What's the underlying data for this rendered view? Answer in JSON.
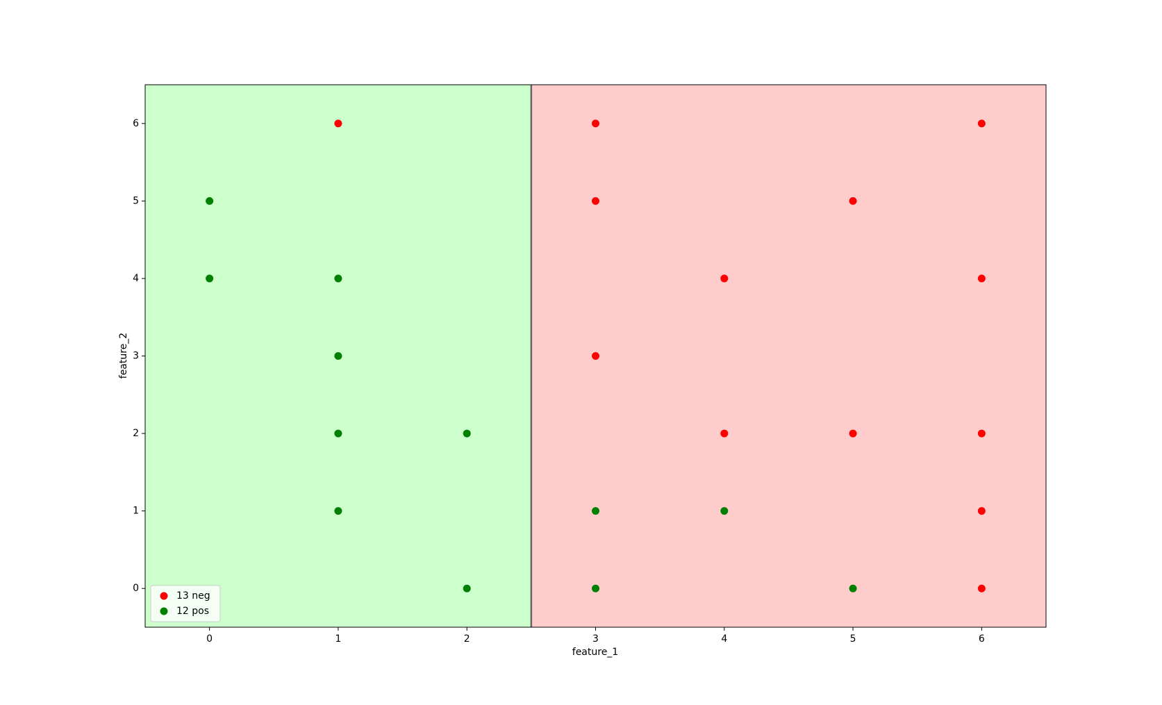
{
  "chart_data": {
    "type": "scatter",
    "xlabel": "feature_1",
    "ylabel": "feature_2",
    "xlim": [
      -0.5,
      6.5
    ],
    "ylim": [
      -0.5,
      6.5
    ],
    "xticks": [
      0,
      1,
      2,
      3,
      4,
      5,
      6
    ],
    "yticks": [
      0,
      1,
      2,
      3,
      4,
      5,
      6
    ],
    "split": {
      "x": 2.5,
      "left_color": "#ccffcc",
      "right_color": "#ffcccc",
      "line_color": "#666666"
    },
    "legend": "lower left",
    "series": [
      {
        "name": "13 neg",
        "color": "#ff0000",
        "x": [
          1,
          3,
          6,
          3,
          5,
          4,
          6,
          3,
          4,
          5,
          6,
          6,
          6
        ],
        "y": [
          6,
          6,
          6,
          5,
          5,
          4,
          4,
          3,
          2,
          2,
          2,
          1,
          0
        ]
      },
      {
        "name": "12 pos",
        "color": "#008000",
        "x": [
          0,
          0,
          1,
          1,
          1,
          2,
          1,
          3,
          4,
          2,
          3,
          5
        ],
        "y": [
          5,
          4,
          4,
          3,
          2,
          2,
          1,
          1,
          1,
          0,
          0,
          0
        ]
      }
    ]
  }
}
